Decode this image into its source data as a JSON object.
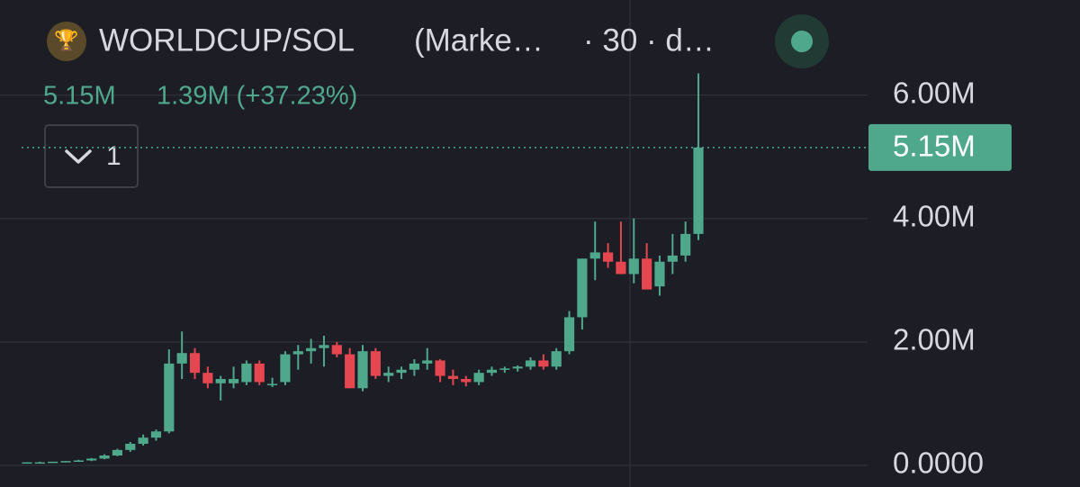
{
  "chart_data": {
    "type": "candlestick",
    "title": "WORLDCUP/SOL",
    "subtitle": "(Marke…",
    "interval": "· 30 · d…",
    "legend_value": "5.15M",
    "legend_change": "1.39M (+37.23%)",
    "pane_button": "1",
    "up_color": "#4fa88c",
    "down_color": "#e4474f",
    "grid": true,
    "ylim": [
      -0.35,
      7.54
    ],
    "yticks": [
      {
        "value": 0,
        "label": "0.0000"
      },
      {
        "value": 2,
        "label": "2.00M"
      },
      {
        "value": 4,
        "label": "4.00M"
      },
      {
        "value": 6,
        "label": "6.00M"
      }
    ],
    "last_price": {
      "value": 5.15,
      "label": "5.15M"
    },
    "open": [
      0.04,
      0.05,
      0.05,
      0.06,
      0.07,
      0.08,
      0.11,
      0.16,
      0.25,
      0.35,
      0.45,
      0.55,
      1.65,
      1.82,
      1.5,
      1.33,
      1.33,
      1.35,
      1.65,
      1.3,
      1.35,
      1.8,
      1.85,
      1.9,
      1.95,
      1.8,
      1.25,
      1.85,
      1.45,
      1.5,
      1.55,
      1.65,
      1.7,
      1.45,
      1.4,
      1.35,
      1.5,
      1.55,
      1.57,
      1.6,
      1.7,
      1.6,
      1.85,
      2.4,
      3.35,
      3.45,
      3.3,
      3.1,
      3.35,
      2.9,
      3.3,
      3.4,
      3.75
    ],
    "high": [
      0.05,
      0.06,
      0.06,
      0.07,
      0.09,
      0.12,
      0.18,
      0.27,
      0.38,
      0.5,
      0.58,
      1.88,
      2.17,
      1.9,
      1.6,
      1.45,
      1.6,
      1.7,
      1.7,
      1.42,
      1.85,
      1.95,
      2.05,
      2.1,
      2.0,
      1.9,
      1.95,
      1.9,
      1.6,
      1.6,
      1.72,
      1.9,
      1.72,
      1.55,
      1.45,
      1.55,
      1.6,
      1.6,
      1.62,
      1.75,
      1.8,
      1.9,
      2.5,
      3.35,
      3.95,
      3.6,
      3.95,
      4.0,
      3.6,
      3.4,
      3.75,
      3.95,
      6.35
    ],
    "low": [
      0.03,
      0.04,
      0.05,
      0.05,
      0.06,
      0.07,
      0.1,
      0.15,
      0.22,
      0.32,
      0.4,
      0.52,
      1.4,
      1.4,
      1.25,
      1.05,
      1.25,
      1.3,
      1.3,
      1.27,
      1.3,
      1.55,
      1.65,
      1.6,
      1.75,
      1.25,
      1.2,
      1.4,
      1.35,
      1.4,
      1.45,
      1.55,
      1.35,
      1.3,
      1.28,
      1.3,
      1.45,
      1.5,
      1.52,
      1.55,
      1.55,
      1.55,
      1.8,
      2.2,
      3.0,
      3.2,
      3.1,
      2.95,
      2.85,
      2.75,
      3.1,
      3.3,
      3.65
    ],
    "close": [
      0.05,
      0.05,
      0.06,
      0.07,
      0.08,
      0.11,
      0.16,
      0.25,
      0.35,
      0.45,
      0.55,
      1.65,
      1.82,
      1.5,
      1.33,
      1.4,
      1.4,
      1.65,
      1.35,
      1.32,
      1.8,
      1.85,
      1.9,
      1.95,
      1.8,
      1.25,
      1.85,
      1.45,
      1.5,
      1.55,
      1.65,
      1.7,
      1.45,
      1.4,
      1.35,
      1.5,
      1.55,
      1.57,
      1.6,
      1.7,
      1.6,
      1.85,
      2.4,
      3.35,
      3.45,
      3.3,
      3.1,
      3.35,
      2.85,
      3.3,
      3.4,
      3.75,
      5.15
    ]
  }
}
